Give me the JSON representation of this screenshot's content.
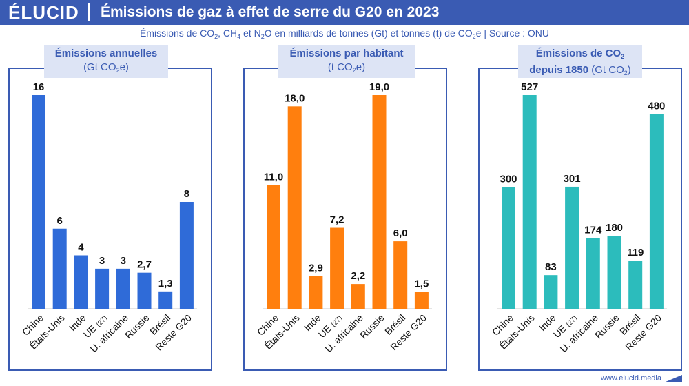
{
  "header": {
    "logo": "ÉLUCID",
    "title": "Émissions de gaz à effet de serre du G20 en 2023"
  },
  "subtitle": {
    "part1": "Émissions de CO",
    "sub1": "2",
    "part2": ", CH",
    "sub2": "4",
    "part3": " et N",
    "sub3": "2",
    "part4": "O en milliards de tonnes (Gt) et tonnes (t) de CO",
    "sub4": "2",
    "part5": "e  |  Source : ONU"
  },
  "footer": {
    "site": "www.elucid.media"
  },
  "colors": {
    "header": "#3a5bb3",
    "blue": "#2f6bd8",
    "orange": "#ff7f0e",
    "teal": "#2cbcbc"
  },
  "panel_titles": [
    {
      "bold": "Émissions annuelles",
      "unit_a": "(Gt CO",
      "unit_sub": "2",
      "unit_b": "e)"
    },
    {
      "bold": "Émissions par habitant",
      "unit_a": "(t CO",
      "unit_sub": "2",
      "unit_b": "e)"
    },
    {
      "bold_a": "Émissions de CO",
      "bold_sub": "2",
      "bold2": "depuis 1850",
      "unit_a": " (Gt CO",
      "unit_sub": "2",
      "unit_b": ")"
    }
  ],
  "chart_data": [
    {
      "type": "bar",
      "title": "Émissions annuelles (Gt CO2e)",
      "categories": [
        "Chine",
        "États-Unis",
        "Inde",
        "UE (27)",
        "U. africaine",
        "Russie",
        "Brésil",
        "Reste G20"
      ],
      "values": [
        16,
        6,
        4,
        3,
        3,
        2.7,
        1.3,
        8
      ],
      "labels": [
        "16",
        "6",
        "4",
        "3",
        "3",
        "2,7",
        "1,3",
        "8"
      ],
      "ylim": [
        0,
        16
      ],
      "color": "#2f6bd8"
    },
    {
      "type": "bar",
      "title": "Émissions par habitant (t CO2e)",
      "categories": [
        "Chine",
        "États-Unis",
        "Inde",
        "UE (27)",
        "U. africaine",
        "Russie",
        "Brésil",
        "Reste G20"
      ],
      "values": [
        11.0,
        18.0,
        2.9,
        7.2,
        2.2,
        19.0,
        6.0,
        1.5
      ],
      "labels": [
        "11,0",
        "18,0",
        "2,9",
        "7,2",
        "2,2",
        "19,0",
        "6,0",
        "1,5"
      ],
      "ylim": [
        0,
        19
      ],
      "color": "#ff7f0e"
    },
    {
      "type": "bar",
      "title": "Émissions de CO2 depuis 1850 (Gt CO2)",
      "categories": [
        "Chine",
        "États-Unis",
        "Inde",
        "UE (27)",
        "U. africaine",
        "Russie",
        "Brésil",
        "Reste G20"
      ],
      "values": [
        300,
        527,
        83,
        301,
        174,
        180,
        119,
        480
      ],
      "labels": [
        "300",
        "527",
        "83",
        "301",
        "174",
        "180",
        "119",
        "480"
      ],
      "ylim": [
        0,
        527
      ],
      "color": "#2cbcbc"
    }
  ]
}
